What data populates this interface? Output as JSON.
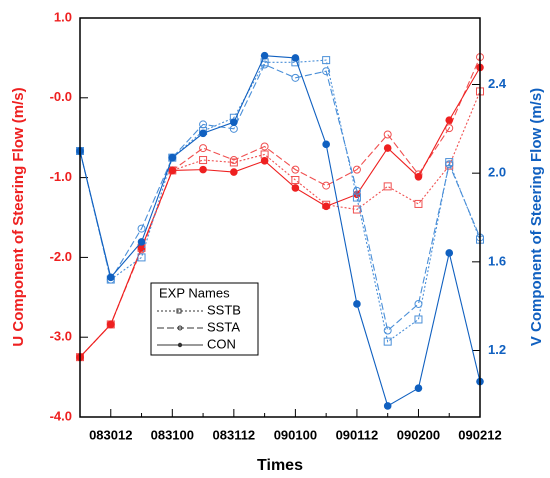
{
  "chart_data": {
    "type": "line",
    "xlabel": "Times",
    "ylabel": "U Component of Steering Flow (m/s)",
    "y2label": "V Component of Steering Flow (m/s)",
    "categories": [
      null,
      "083012",
      null,
      "083100",
      null,
      "083112",
      null,
      "090100",
      null,
      "090112",
      null,
      "090200",
      null,
      "090212"
    ],
    "ylim": [
      -4.0,
      1.0
    ],
    "yticks": [
      {
        "value": -4,
        "label": "-4.0"
      },
      {
        "value": -3,
        "label": "-3.0"
      },
      {
        "value": -2,
        "label": "-2.0"
      },
      {
        "value": -1,
        "label": "-1.0"
      },
      {
        "value": 0,
        "label": "-0.0"
      },
      {
        "value": 1,
        "label": "1.0"
      }
    ],
    "y2lim": [
      0.9,
      2.7
    ],
    "y2ticks": [
      1.2,
      1.6,
      {
        "value": 2.0,
        "label": "2.0"
      },
      2.4
    ],
    "legend_title": "EXP Names",
    "legend": "lower-left",
    "series": [
      {
        "name": "SSTB",
        "color": "#f05050",
        "style": "dotted",
        "marker": "square",
        "values": [
          -3.25,
          -2.84,
          -1.88,
          -0.91,
          -0.78,
          -0.81,
          -0.71,
          -1.03,
          -1.34,
          -1.4,
          -1.11,
          -1.33,
          -0.85,
          0.08
        ]
      },
      {
        "name": "SSTA",
        "color": "#f05050",
        "style": "dashed",
        "marker": "circle",
        "values": [
          -3.25,
          -2.84,
          -1.9,
          -0.91,
          -0.63,
          -0.78,
          -0.61,
          -0.9,
          -1.1,
          -0.9,
          -0.46,
          -0.96,
          -0.38,
          0.51
        ]
      },
      {
        "name": "CON",
        "color": "#ee2020",
        "style": "solid",
        "marker": "dot",
        "values": [
          -3.25,
          -2.84,
          -1.88,
          -0.91,
          -0.9,
          -0.93,
          -0.79,
          -1.13,
          -1.36,
          -1.21,
          -0.63,
          -0.99,
          -0.28,
          0.38
        ]
      },
      {
        "name": "SSTB",
        "color": "#4a8fd8",
        "style": "dotted",
        "marker": "square",
        "axis": "y2",
        "values": [
          2.1,
          1.52,
          1.62,
          2.07,
          2.19,
          2.25,
          2.5,
          2.5,
          2.51,
          1.89,
          1.24,
          1.34,
          2.05,
          1.7
        ]
      },
      {
        "name": "SSTA",
        "color": "#4a8fd8",
        "style": "dashed",
        "marker": "circle",
        "axis": "y2",
        "values": [
          2.1,
          1.52,
          1.75,
          2.07,
          2.22,
          2.2,
          2.49,
          2.43,
          2.46,
          1.92,
          1.29,
          1.41,
          2.04,
          1.71
        ]
      },
      {
        "name": "CON",
        "color": "#1060c0",
        "style": "solid",
        "marker": "dot",
        "axis": "y2",
        "values": [
          2.1,
          1.53,
          1.69,
          2.07,
          2.18,
          2.23,
          2.53,
          2.52,
          2.13,
          1.41,
          0.95,
          1.03,
          1.64,
          1.06
        ]
      }
    ]
  }
}
